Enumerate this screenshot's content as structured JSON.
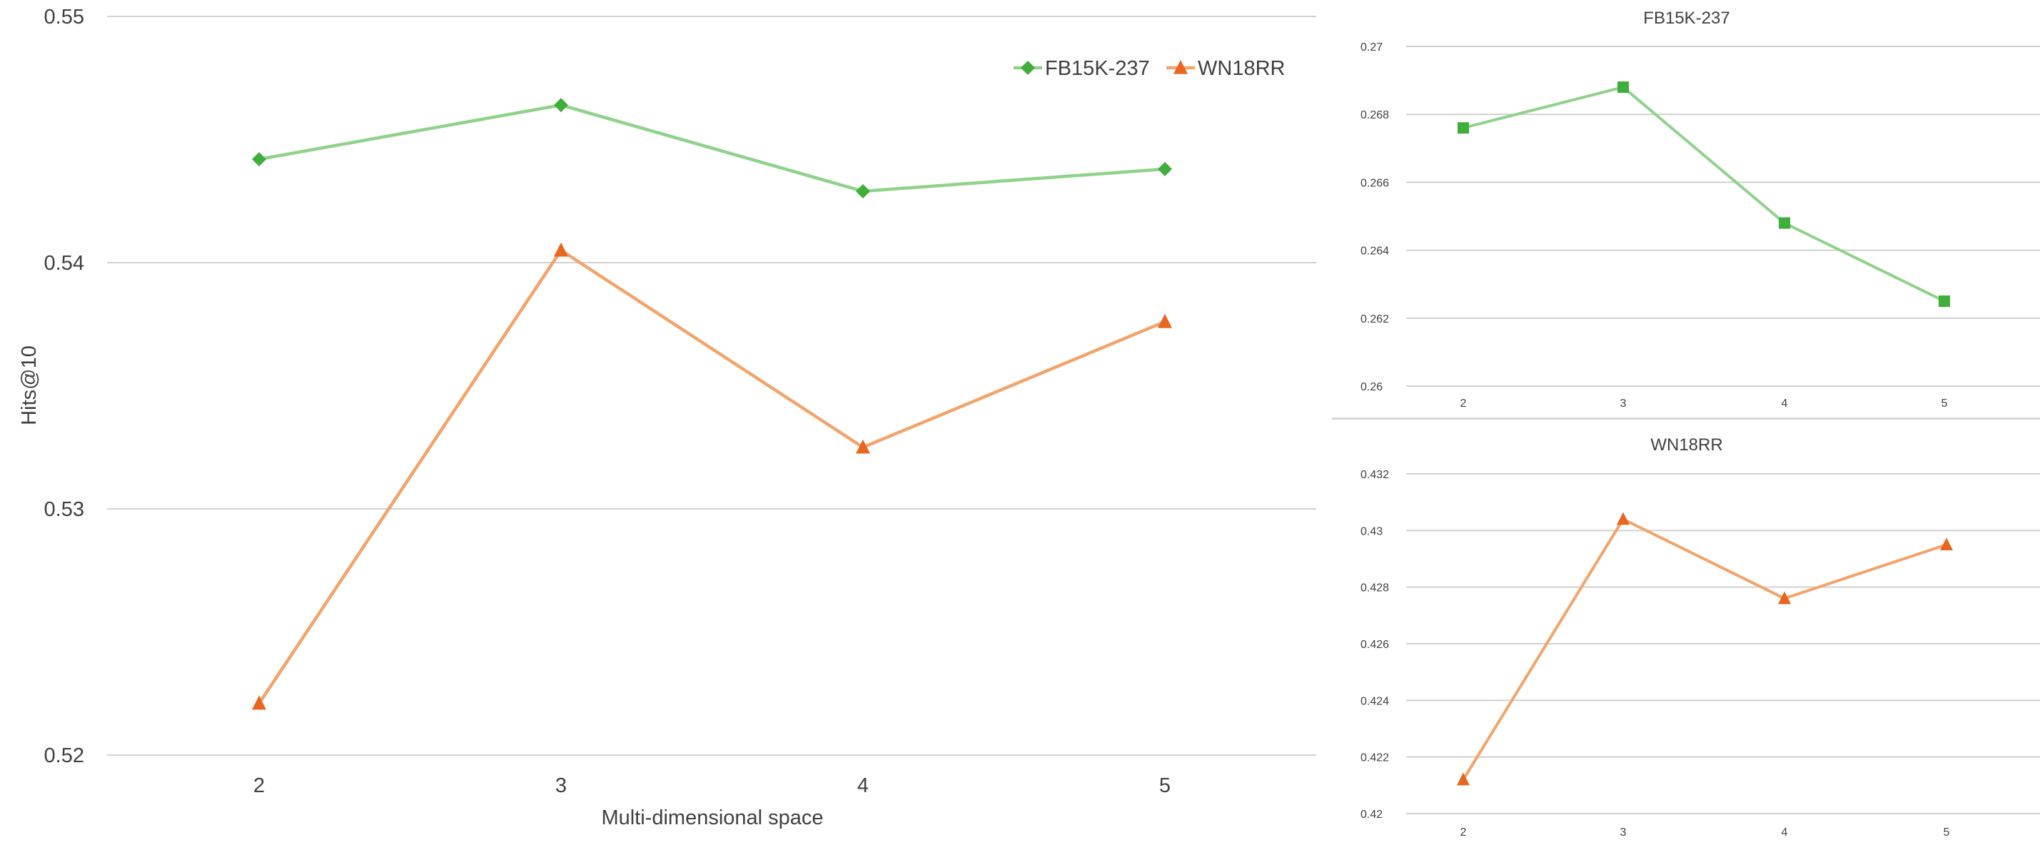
{
  "chart_data": [
    {
      "type": "line",
      "title": "",
      "xlabel": "Multi-dimensional space",
      "ylabel": "Hits@10",
      "categories": [
        "2",
        "3",
        "4",
        "5"
      ],
      "ylim": [
        0.52,
        0.55
      ],
      "yticks": [
        "0.52",
        "0.53",
        "0.54",
        "0.55"
      ],
      "grid": true,
      "legend": "top-right",
      "series": [
        {
          "name": "FB15K-237",
          "values": [
            0.5442,
            0.5464,
            0.5429,
            0.5438
          ],
          "color": "#8fd28a",
          "marker_color": "#3fae3a",
          "marker": "diamond"
        },
        {
          "name": "WN18RR",
          "values": [
            0.5221,
            0.5405,
            0.5325,
            0.5376
          ],
          "color": "#f2a46a",
          "marker_color": "#e8661f",
          "marker": "triangle"
        }
      ]
    },
    {
      "type": "line",
      "title": "FB15K-237",
      "xlabel": "",
      "ylabel": "",
      "categories": [
        "2",
        "3",
        "4",
        "5"
      ],
      "ylim": [
        0.26,
        0.27
      ],
      "yticks": [
        "0.26",
        "0.262",
        "0.264",
        "0.266",
        "0.268",
        "0.27"
      ],
      "grid": true,
      "series": [
        {
          "values": [
            0.2676,
            0.2688,
            0.2648,
            0.2625
          ],
          "color": "#8fd28a",
          "marker_color": "#3fae3a",
          "marker": "square"
        }
      ]
    },
    {
      "type": "line",
      "title": "WN18RR",
      "xlabel": "",
      "ylabel": "",
      "categories": [
        "2",
        "3",
        "4",
        "5"
      ],
      "ylim": [
        0.42,
        0.432
      ],
      "yticks": [
        "0.42",
        "0.422",
        "0.424",
        "0.426",
        "0.428",
        "0.43",
        "0.432"
      ],
      "grid": true,
      "series": [
        {
          "values": [
            0.4212,
            0.4304,
            0.4276,
            0.4295
          ],
          "color": "#f2a46a",
          "marker_color": "#e8661f",
          "marker": "triangle"
        }
      ]
    }
  ]
}
